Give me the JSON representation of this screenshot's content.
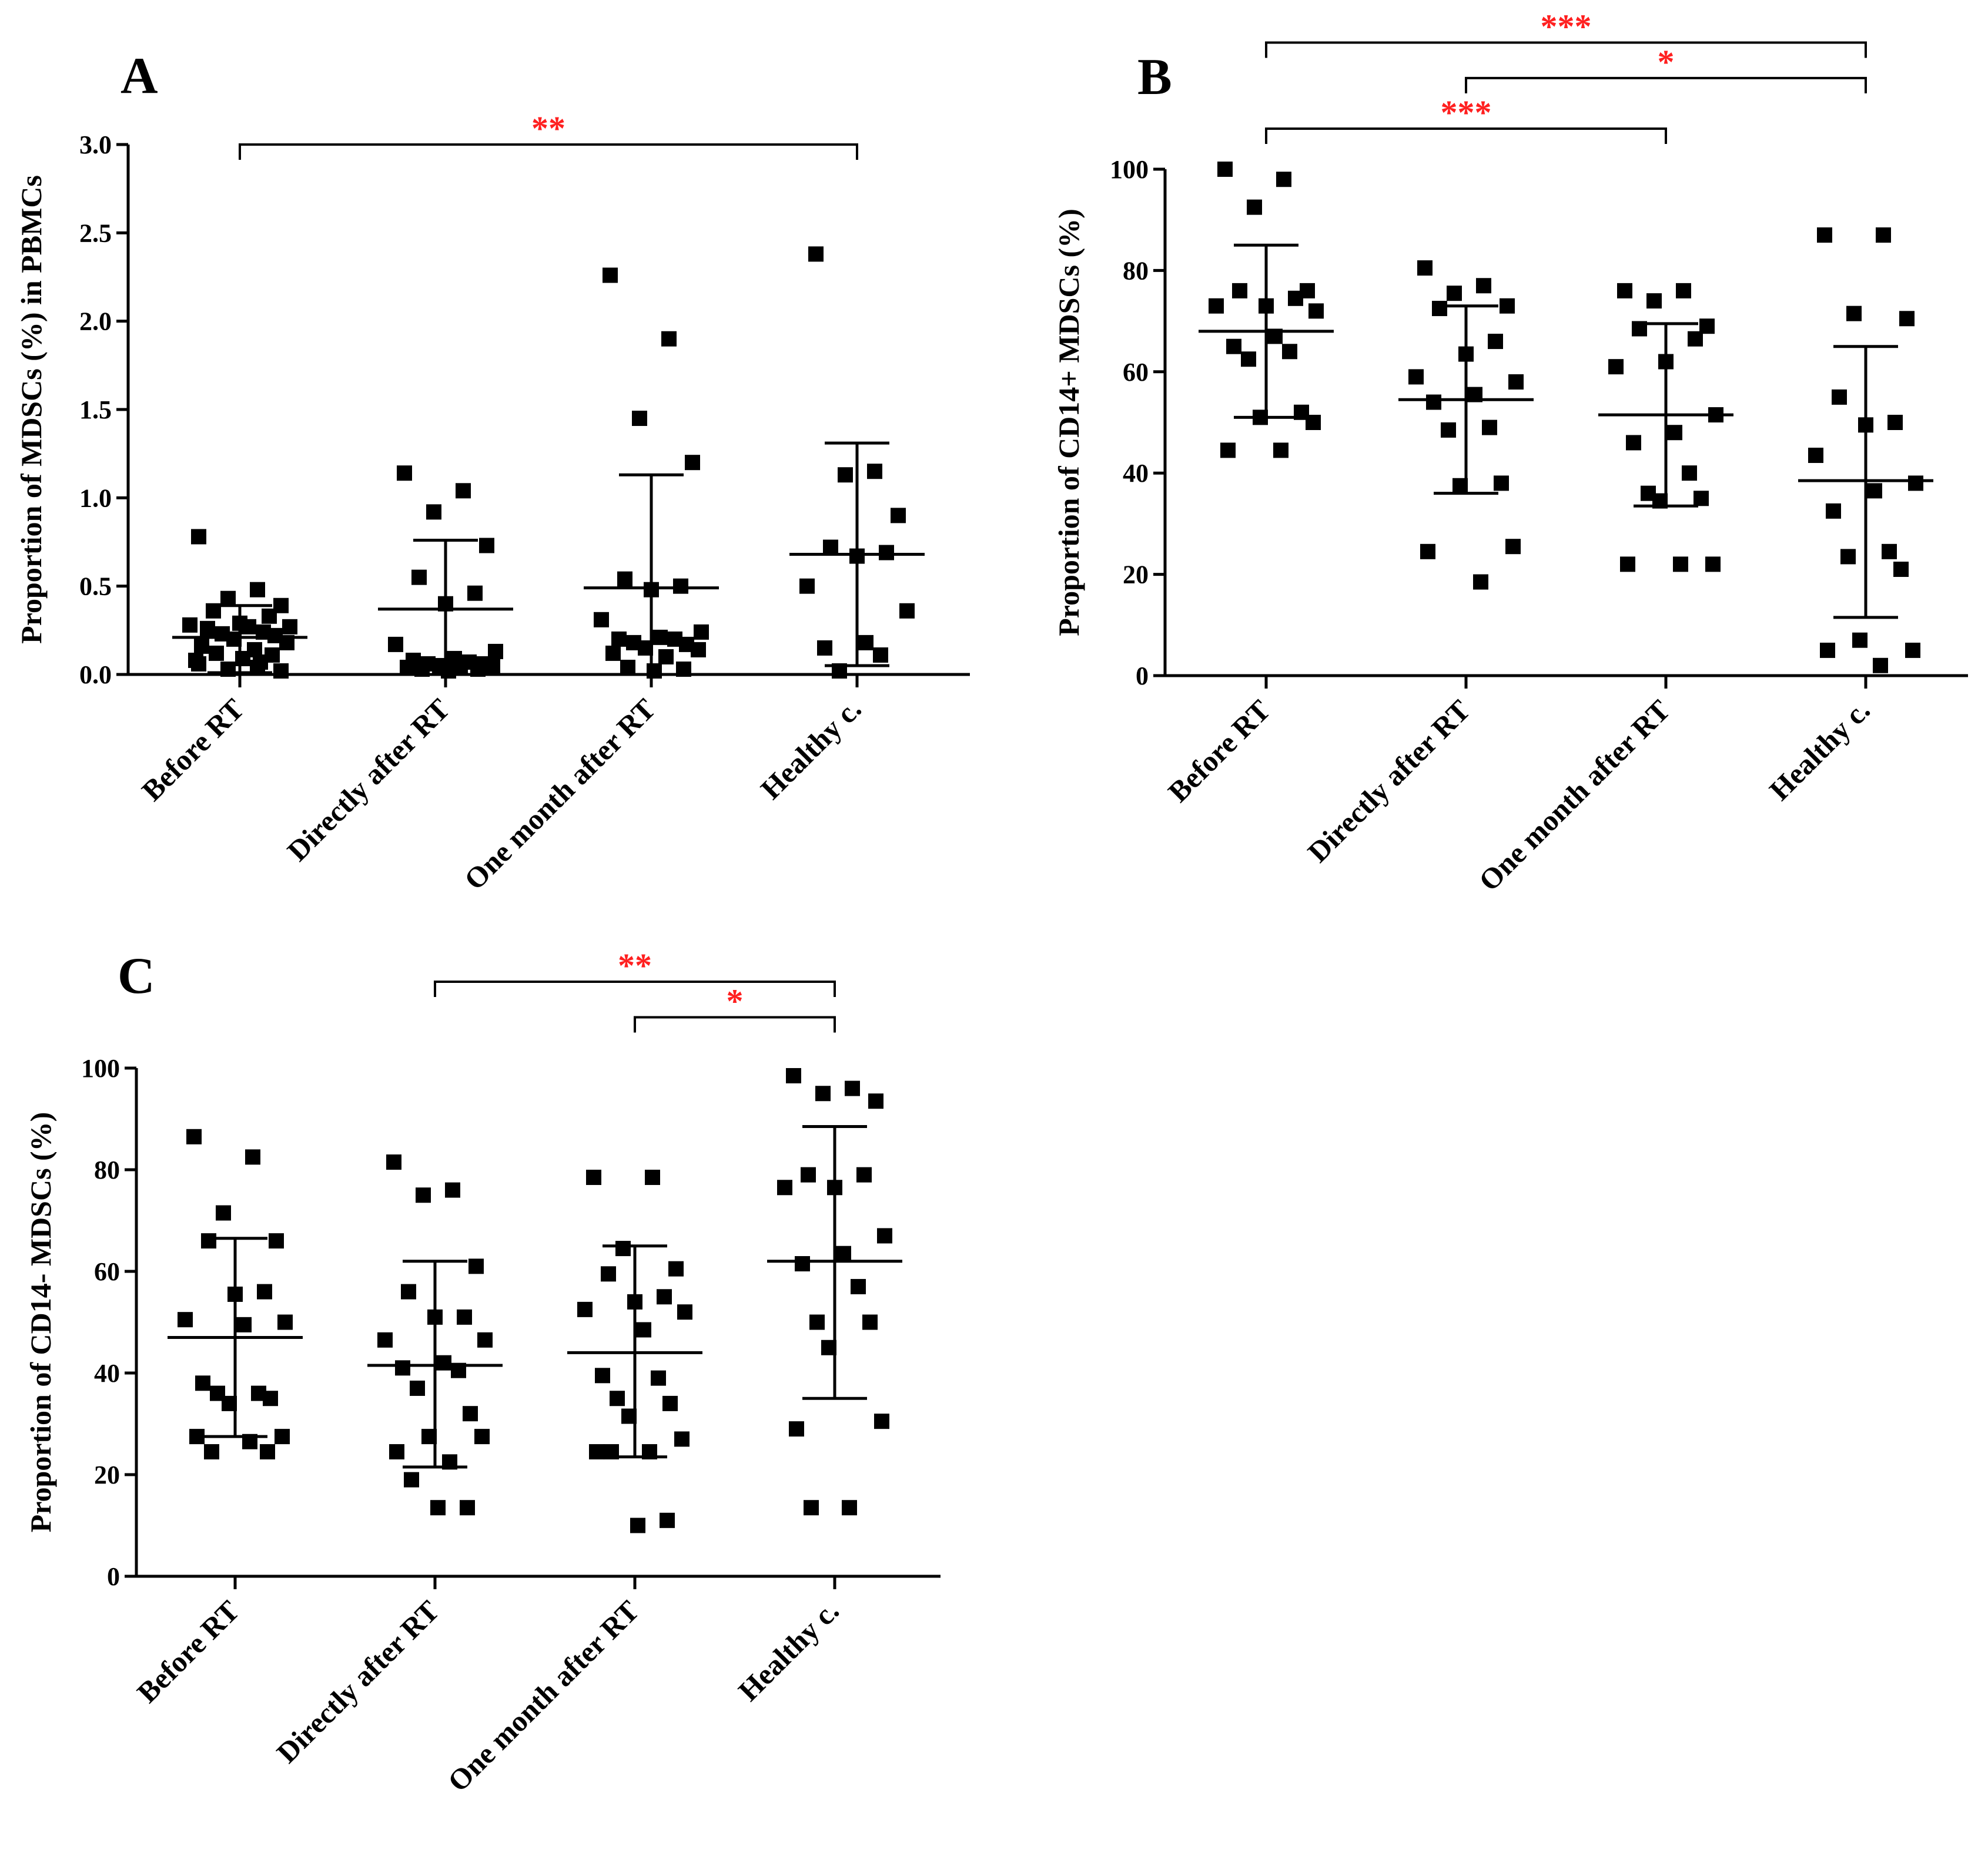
{
  "colors": {
    "axis": "#000000",
    "marker": "#000000",
    "significance": "#ff2020",
    "background": "#ffffff"
  },
  "chart_data": [
    {
      "panel": "A",
      "type": "scatter",
      "ylabel": "Proportion of MDSCs (%) in PBMCs",
      "ylim": [
        0,
        3.0
      ],
      "yticks": [
        0.0,
        0.5,
        1.0,
        1.5,
        2.0,
        2.5,
        3.0
      ],
      "ytick_labels": [
        "0.0",
        "0.5",
        "1.0",
        "1.5",
        "2.0",
        "2.5",
        "3.0"
      ],
      "categories": [
        "Before RT",
        "Directly after RT",
        "One month after RT",
        "Healthy c."
      ],
      "series": [
        {
          "name": "Before RT",
          "values": [
            0.78,
            0.48,
            0.43,
            0.39,
            0.36,
            0.33,
            0.29,
            0.28,
            0.27,
            0.27,
            0.26,
            0.24,
            0.23,
            0.22,
            0.2,
            0.18,
            0.16,
            0.14,
            0.12,
            0.11,
            0.09,
            0.08,
            0.07,
            0.06,
            0.04,
            0.03,
            0.02
          ],
          "mean": 0.21,
          "sd_low": 0.01,
          "sd_high": 0.39
        },
        {
          "name": "Directly after RT",
          "values": [
            1.14,
            1.04,
            0.92,
            0.73,
            0.55,
            0.46,
            0.4,
            0.17,
            0.13,
            0.09,
            0.08,
            0.07,
            0.06,
            0.06,
            0.05,
            0.05,
            0.04,
            0.04,
            0.03,
            0.03,
            0.02
          ],
          "mean": 0.37,
          "sd_low": 0.0,
          "sd_high": 0.76
        },
        {
          "name": "One month after RT",
          "values": [
            2.26,
            1.9,
            1.45,
            1.2,
            0.54,
            0.5,
            0.48,
            0.31,
            0.24,
            0.21,
            0.2,
            0.2,
            0.18,
            0.17,
            0.15,
            0.14,
            0.12,
            0.1,
            0.04,
            0.03,
            0.02
          ],
          "mean": 0.49,
          "sd_low": 0.0,
          "sd_high": 1.13
        },
        {
          "name": "Healthy c.",
          "values": [
            2.38,
            1.15,
            1.13,
            0.9,
            0.72,
            0.69,
            0.67,
            0.5,
            0.36,
            0.18,
            0.15,
            0.11,
            0.02
          ],
          "mean": 0.68,
          "sd_low": 0.05,
          "sd_high": 1.31
        }
      ],
      "significance": [
        {
          "from": 0,
          "to": 3,
          "label": "**",
          "level": 3.0
        }
      ]
    },
    {
      "panel": "B",
      "type": "scatter",
      "ylabel": "Proportion of CD14+ MDSCs (%)",
      "ylim": [
        0,
        100
      ],
      "yticks": [
        0,
        20,
        40,
        60,
        80,
        100
      ],
      "ytick_labels": [
        "0",
        "20",
        "40",
        "60",
        "80",
        "100"
      ],
      "categories": [
        "Before RT",
        "Directly after RT",
        "One month after RT",
        "Healthy c."
      ],
      "series": [
        {
          "name": "Before RT",
          "values": [
            100,
            98,
            92.5,
            76,
            76,
            74.5,
            73,
            73,
            72,
            67,
            65,
            64,
            62.5,
            52,
            51,
            50,
            44.5,
            44.5
          ],
          "mean": 68,
          "sd_low": 51,
          "sd_high": 85
        },
        {
          "name": "Directly after RT",
          "values": [
            80.5,
            77,
            75.5,
            73,
            72.5,
            66,
            63.5,
            59,
            58,
            55.5,
            54,
            49,
            48.5,
            38,
            37.5,
            25.5,
            24.5,
            18.5
          ],
          "mean": 54.5,
          "sd_low": 36,
          "sd_high": 73
        },
        {
          "name": "One month after RT",
          "values": [
            76,
            76,
            74,
            69,
            68.5,
            66.5,
            62,
            61,
            51.5,
            48,
            46,
            40,
            36,
            35,
            34.5,
            22,
            22,
            22
          ],
          "mean": 51.5,
          "sd_low": 33.5,
          "sd_high": 69.5
        },
        {
          "name": "Healthy c.",
          "values": [
            87,
            87,
            71.5,
            70.5,
            55,
            50,
            49.5,
            43.5,
            38,
            36.5,
            32.5,
            24.5,
            23.5,
            21,
            7,
            5,
            5,
            2
          ],
          "mean": 38.5,
          "sd_low": 11.5,
          "sd_high": 65
        }
      ],
      "significance": [
        {
          "from": 0,
          "to": 3,
          "label": "***",
          "level": 125
        },
        {
          "from": 1,
          "to": 3,
          "label": "*",
          "level": 118
        },
        {
          "from": 0,
          "to": 2,
          "label": "***",
          "level": 108
        }
      ]
    },
    {
      "panel": "C",
      "type": "scatter",
      "ylabel": "Proportion of CD14- MDSCs (%)",
      "ylim": [
        0,
        100
      ],
      "yticks": [
        0,
        20,
        40,
        60,
        80,
        100
      ],
      "ytick_labels": [
        "0",
        "20",
        "40",
        "60",
        "80",
        "100"
      ],
      "categories": [
        "Before RT",
        "Directly after RT",
        "One month after RT",
        "Healthy c."
      ],
      "series": [
        {
          "name": "Before RT",
          "values": [
            86.5,
            82.5,
            71.5,
            66,
            66,
            56,
            55.5,
            50.5,
            50,
            49.5,
            38,
            36,
            36,
            35,
            34,
            27.5,
            27.5,
            26.5,
            24.5,
            24.5
          ],
          "mean": 47,
          "sd_low": 27.5,
          "sd_high": 66.5
        },
        {
          "name": "Directly after RT",
          "values": [
            81.5,
            76,
            75,
            61,
            56,
            51,
            51,
            46.5,
            46.5,
            42,
            41,
            40.5,
            37,
            32,
            27.5,
            27.5,
            24.5,
            22.5,
            19,
            13.5,
            13.5
          ],
          "mean": 41.5,
          "sd_low": 21.5,
          "sd_high": 62
        },
        {
          "name": "One month after RT",
          "values": [
            78.5,
            78.5,
            64.5,
            60.5,
            59.5,
            55,
            54,
            52.5,
            52,
            48.5,
            39.5,
            39,
            35,
            34,
            31.5,
            27,
            24.5,
            24.5,
            24.5,
            11,
            10
          ],
          "mean": 44,
          "sd_low": 23.5,
          "sd_high": 65
        },
        {
          "name": "Healthy c.",
          "values": [
            98.5,
            96,
            95,
            93.5,
            79,
            79,
            76.5,
            76.5,
            67,
            63.5,
            61.5,
            57,
            50,
            50,
            45,
            30.5,
            29,
            13.5,
            13.5
          ],
          "mean": 62,
          "sd_low": 35,
          "sd_high": 88.5
        }
      ],
      "significance": [
        {
          "from": 1,
          "to": 3,
          "label": "**",
          "level": 117
        },
        {
          "from": 2,
          "to": 3,
          "label": "*",
          "level": 110
        }
      ]
    }
  ]
}
